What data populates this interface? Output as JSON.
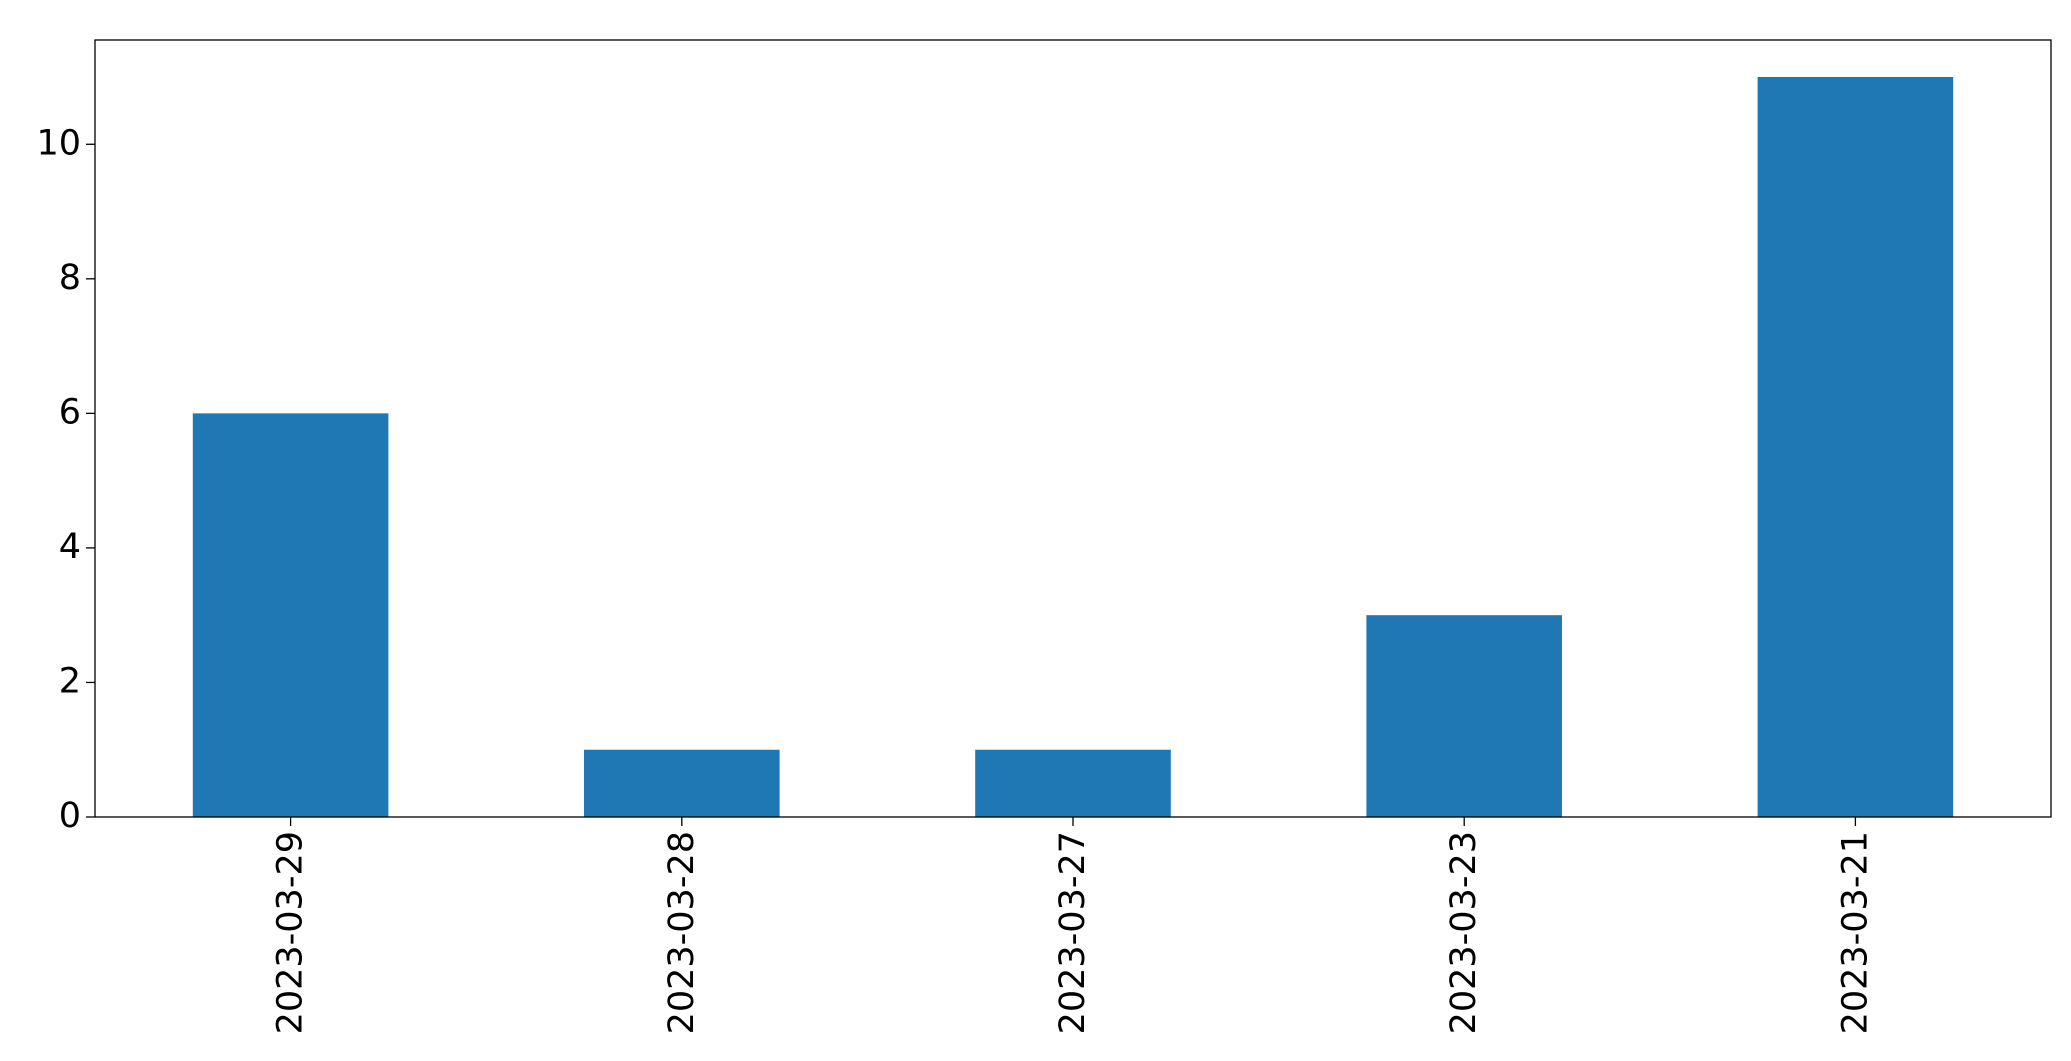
{
  "chart_data": {
    "type": "bar",
    "categories": [
      "2023-03-29",
      "2023-03-28",
      "2023-03-27",
      "2023-03-23",
      "2023-03-21"
    ],
    "values": [
      6,
      1,
      1,
      3,
      11
    ],
    "color": "#1f77b4",
    "ylim": [
      0,
      11.55
    ],
    "yticks": [
      0,
      2,
      4,
      6,
      8,
      10
    ],
    "grid": false
  }
}
